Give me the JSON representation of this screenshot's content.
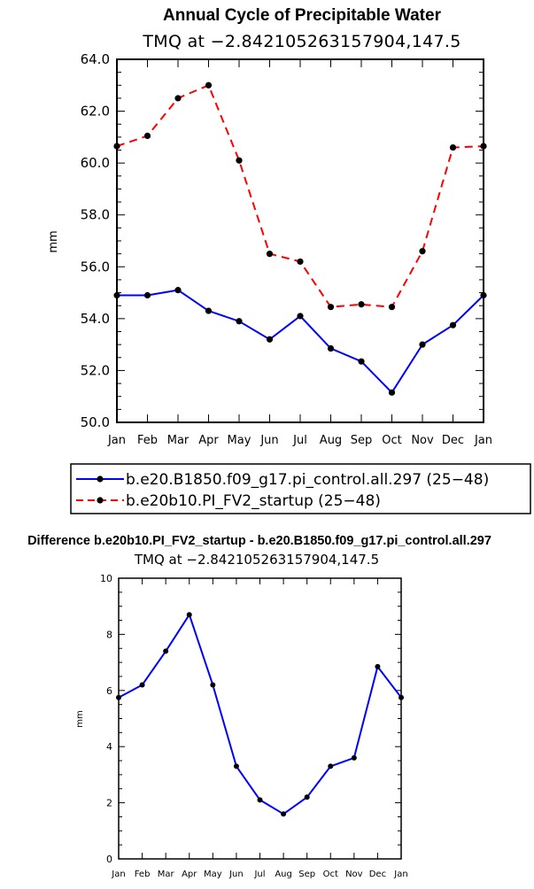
{
  "chart_data": [
    {
      "type": "line",
      "title": "Annual Cycle of Precipitable Water",
      "subtitle": "TMQ at −2.842105263157904,147.5",
      "ylabel": "mm",
      "xlabel": "",
      "categories": [
        "Jan",
        "Feb",
        "Mar",
        "Apr",
        "May",
        "Jun",
        "Jul",
        "Aug",
        "Sep",
        "Oct",
        "Nov",
        "Dec",
        "Jan"
      ],
      "ylim": [
        50,
        64
      ],
      "yticks": [
        "50.0",
        "52.0",
        "54.0",
        "56.0",
        "58.0",
        "60.0",
        "62.0",
        "64.0"
      ],
      "series": [
        {
          "name": "b.e20.B1850.f09_g17.pi_control.all.297 (25−48)",
          "color": "#0000ff",
          "dash": "solid",
          "values": [
            54.9,
            54.9,
            55.1,
            54.3,
            53.9,
            53.2,
            54.1,
            52.85,
            52.35,
            51.15,
            53.0,
            53.75,
            54.9
          ]
        },
        {
          "name": "b.e20b10.PI_FV2_startup (25−48)",
          "color": "#ff0000",
          "dash": "dashed",
          "values": [
            60.65,
            61.05,
            62.5,
            63.0,
            60.1,
            56.5,
            56.2,
            54.45,
            54.55,
            54.45,
            56.6,
            60.6,
            60.65
          ]
        }
      ]
    },
    {
      "type": "line",
      "title": "Difference b.e20b10.PI_FV2_startup - b.e20.B1850.f09_g17.pi_control.all.297",
      "subtitle": "TMQ at −2.842105263157904,147.5",
      "ylabel": "mm",
      "xlabel": "",
      "categories": [
        "Jan",
        "Feb",
        "Mar",
        "Apr",
        "May",
        "Jun",
        "Jul",
        "Aug",
        "Sep",
        "Oct",
        "Nov",
        "Dec",
        "Jan"
      ],
      "ylim": [
        0,
        10
      ],
      "yticks": [
        "0",
        "2",
        "4",
        "6",
        "8",
        "10"
      ],
      "series": [
        {
          "color": "#0000ff",
          "dash": "solid",
          "values": [
            5.75,
            6.2,
            7.4,
            8.7,
            6.2,
            3.3,
            2.1,
            1.6,
            2.2,
            3.3,
            3.6,
            6.85,
            5.75
          ]
        }
      ]
    }
  ]
}
